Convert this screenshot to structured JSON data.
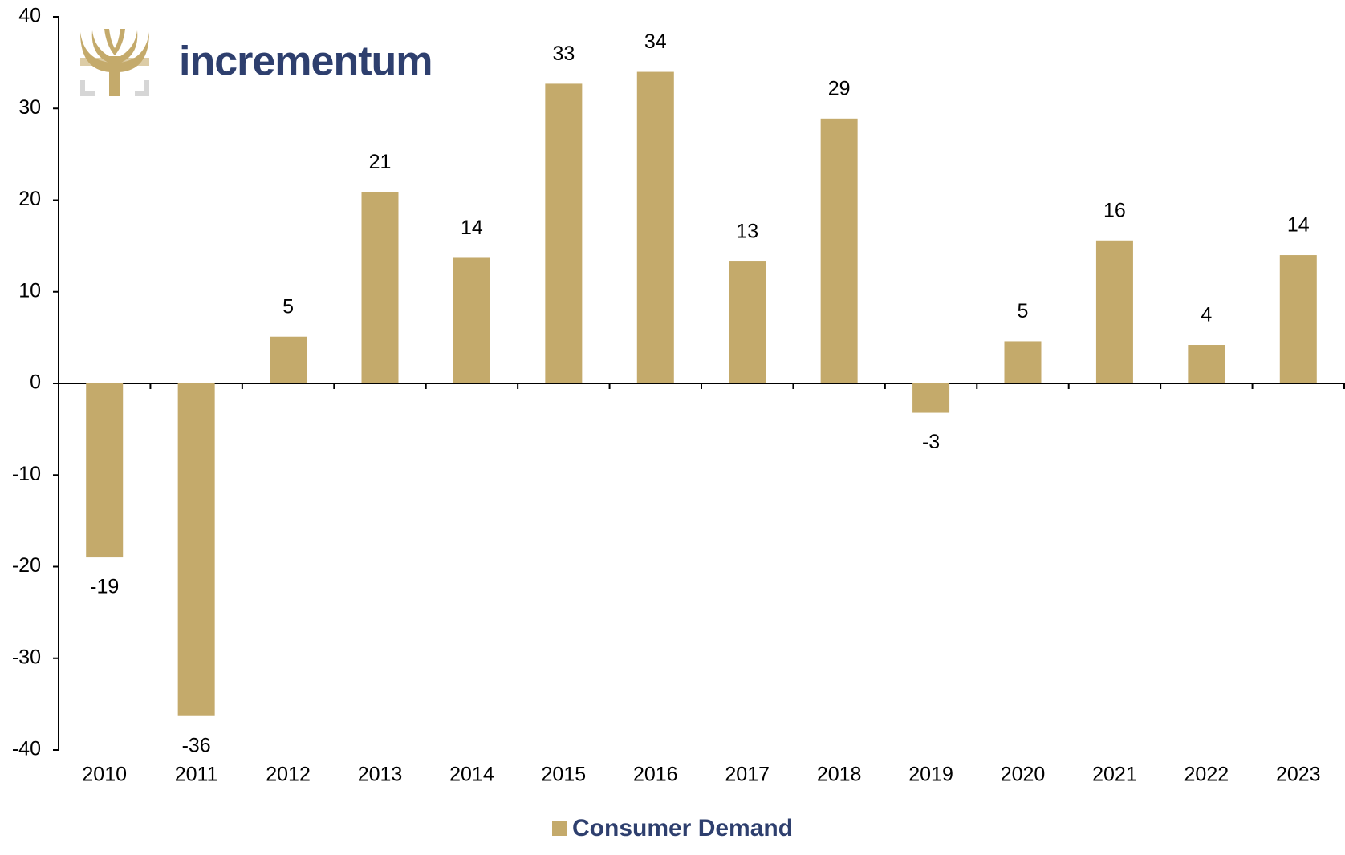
{
  "logo_text": "incrementum",
  "chart_data": {
    "type": "bar",
    "categories": [
      "2010",
      "2011",
      "2012",
      "2013",
      "2014",
      "2015",
      "2016",
      "2017",
      "2018",
      "2019",
      "2020",
      "2021",
      "2022",
      "2023"
    ],
    "series": [
      {
        "name": "Consumer Demand",
        "color": "#c4aa6b",
        "values": [
          -19,
          -36.3,
          5.1,
          20.9,
          13.7,
          32.7,
          34.0,
          13.3,
          28.9,
          -3.2,
          4.6,
          15.6,
          4.2,
          14.0
        ],
        "value_labels": [
          "-19",
          "-36",
          "5",
          "21",
          "14",
          "33",
          "34",
          "13",
          "29",
          "-3",
          "5",
          "16",
          "4",
          "14"
        ]
      }
    ],
    "ylim": [
      -40,
      40
    ],
    "yticks": [
      -40,
      -30,
      -20,
      -10,
      0,
      10,
      20,
      30,
      40
    ],
    "legend": "bottom"
  }
}
